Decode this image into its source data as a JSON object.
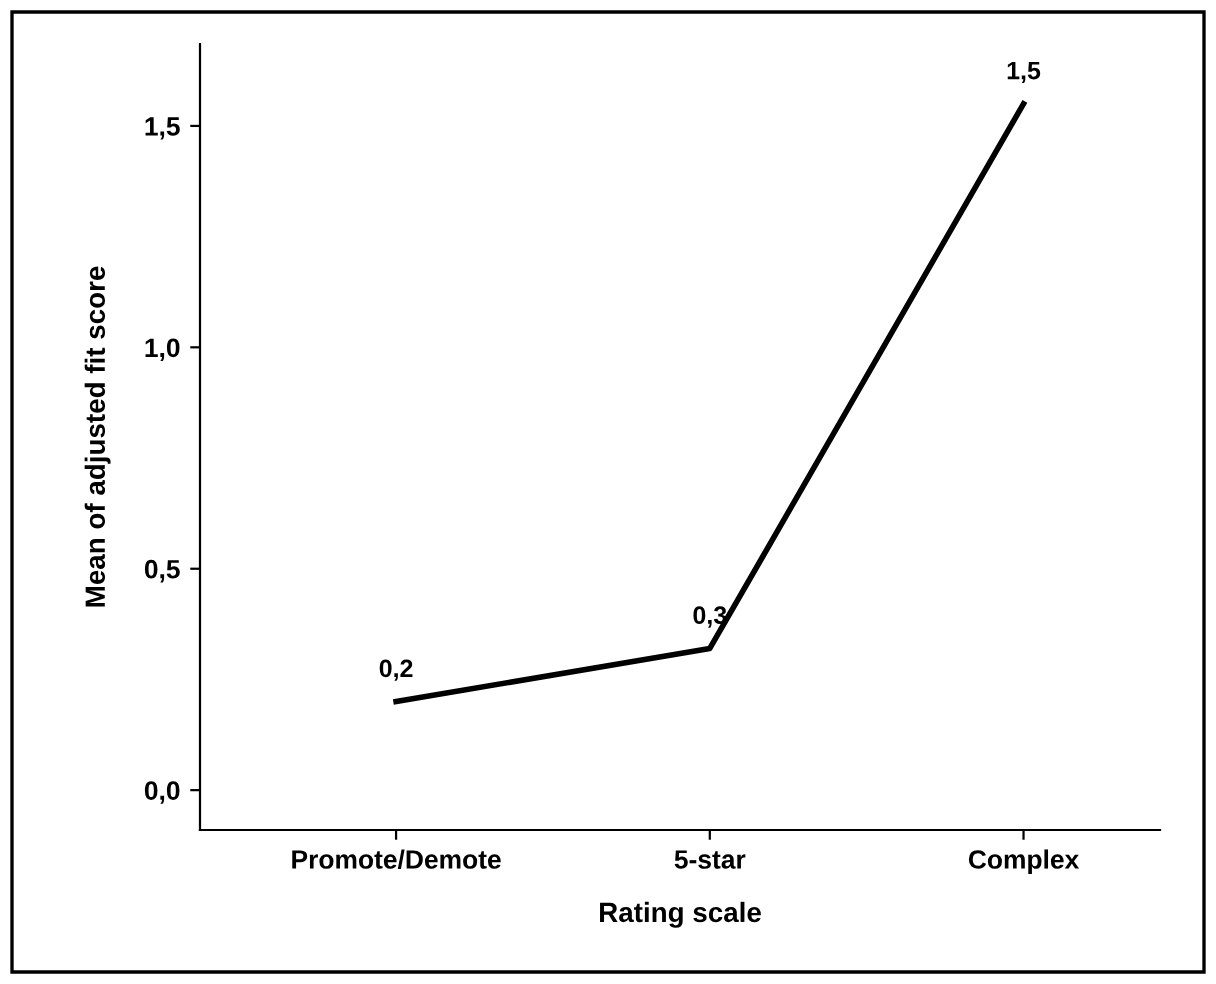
{
  "chart_data": {
    "type": "line",
    "xlabel": "Rating scale",
    "ylabel": "Mean of adjusted fit score",
    "categories": [
      "Promote/Demote",
      "5-star",
      "Complex"
    ],
    "series": [
      {
        "color": "#000000",
        "values": [
          0.2,
          0.32,
          1.55
        ],
        "value_labels": [
          "0,2",
          "0,3",
          "1,5"
        ]
      }
    ],
    "ylim": [
      -0.09,
      1.685
    ],
    "yticks": [
      {
        "value": 0,
        "label": "0,0"
      },
      {
        "value": 0.5,
        "label": "0,5"
      },
      {
        "value": 1.0,
        "label": "1,0"
      },
      {
        "value": 1.5,
        "label": "1,5"
      }
    ],
    "grid": false,
    "legend": false,
    "marker": "none",
    "line_style": "solid"
  }
}
